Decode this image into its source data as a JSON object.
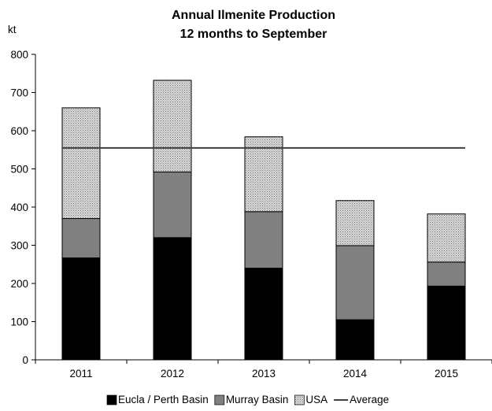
{
  "chart_data": {
    "type": "bar",
    "stacked": true,
    "title": [
      "Annual Ilmenite Production",
      "12 months to September"
    ],
    "unit_label": "kt",
    "categories": [
      "2011",
      "2012",
      "2013",
      "2014",
      "2015"
    ],
    "series": [
      {
        "name": "Eucla / Perth Basin",
        "values": [
          267,
          320,
          240,
          105,
          193
        ],
        "color": "#000000",
        "pattern": "solid"
      },
      {
        "name": "Murray Basin",
        "values": [
          103,
          172,
          148,
          194,
          63
        ],
        "color": "#808080",
        "pattern": "solid"
      },
      {
        "name": "USA",
        "values": [
          290,
          240,
          196,
          118,
          126
        ],
        "color": "#b8b8b8",
        "pattern": "dotted"
      }
    ],
    "average": {
      "name": "Average",
      "value": 555,
      "color": "#404040"
    },
    "ylim": [
      0,
      800
    ],
    "yticks": [
      0,
      100,
      200,
      300,
      400,
      500,
      600,
      700,
      800
    ],
    "grid": false,
    "legend": "bottom"
  }
}
